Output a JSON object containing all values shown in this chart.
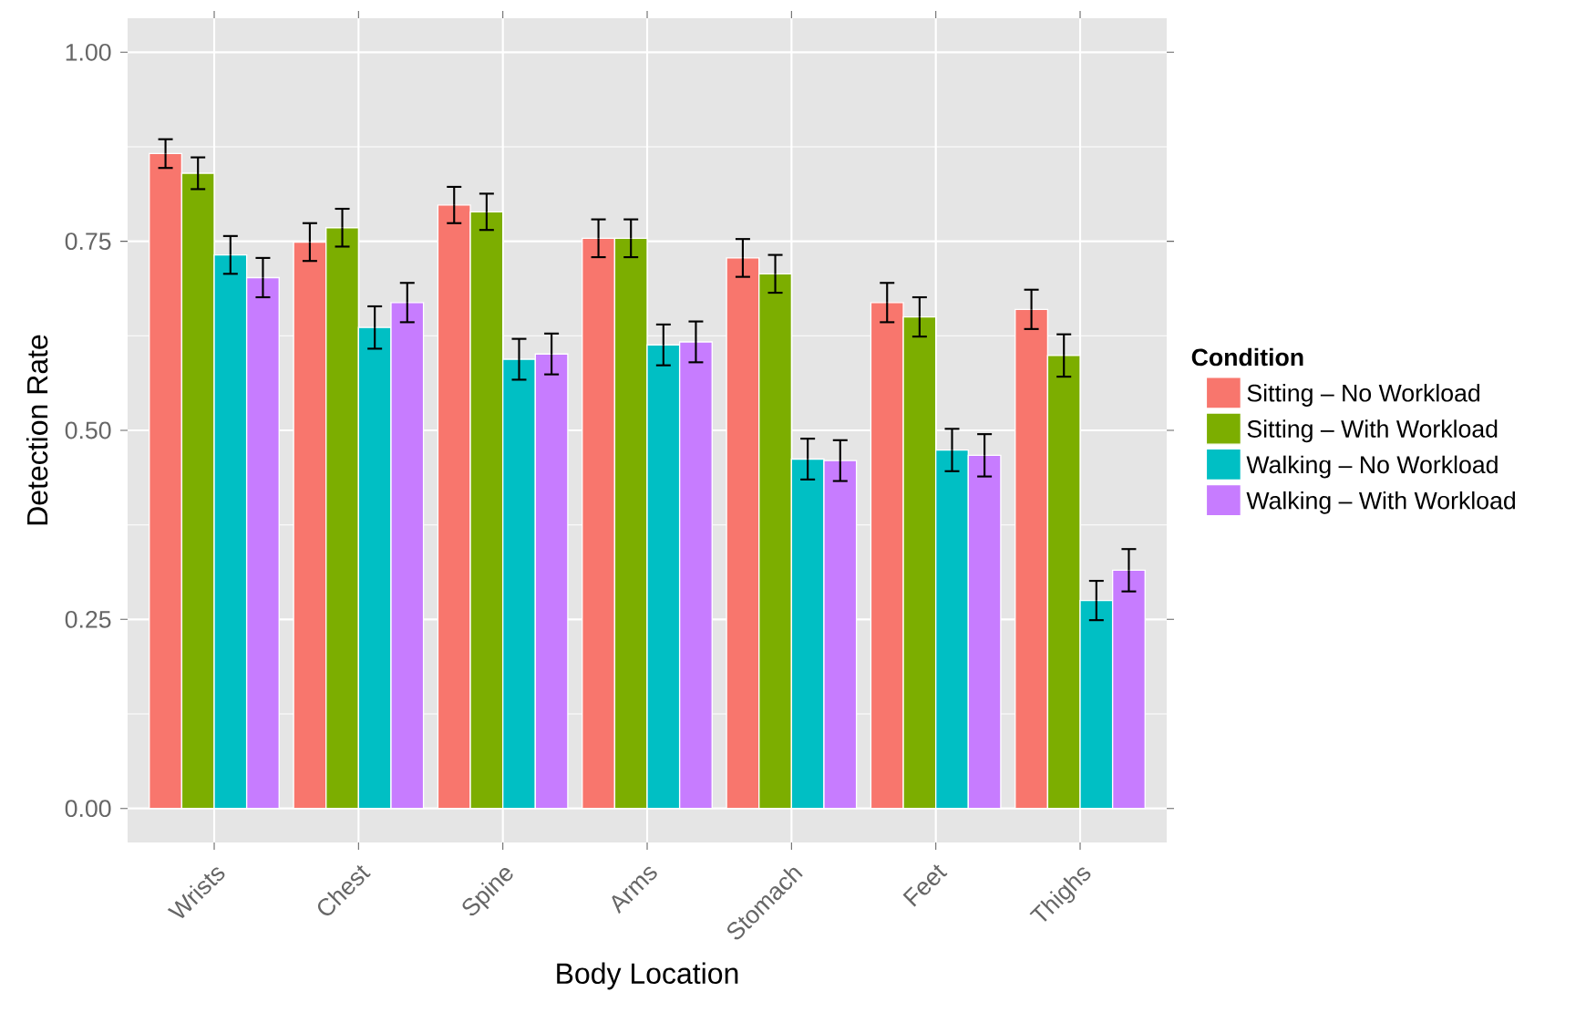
{
  "chart_data": {
    "type": "bar",
    "xlabel": "Body Location",
    "ylabel": "Detection Rate",
    "legend_title": "Condition",
    "categories": [
      "Wrists",
      "Chest",
      "Spine",
      "Arms",
      "Stomach",
      "Feet",
      "Thighs"
    ],
    "series": [
      {
        "name": "Sitting – No Workload",
        "color": "#f8766d",
        "values": [
          0.866,
          0.749,
          0.798,
          0.754,
          0.728,
          0.669,
          0.66
        ],
        "errors": [
          0.019,
          0.025,
          0.024,
          0.025,
          0.025,
          0.026,
          0.026
        ]
      },
      {
        "name": "Sitting – With Workload",
        "color": "#7cae00",
        "values": [
          0.84,
          0.768,
          0.789,
          0.754,
          0.707,
          0.65,
          0.599
        ],
        "errors": [
          0.021,
          0.025,
          0.024,
          0.025,
          0.025,
          0.026,
          0.028
        ]
      },
      {
        "name": "Walking – No Workload",
        "color": "#00bfc4",
        "values": [
          0.732,
          0.636,
          0.594,
          0.613,
          0.462,
          0.474,
          0.275
        ],
        "errors": [
          0.025,
          0.028,
          0.027,
          0.027,
          0.027,
          0.028,
          0.026
        ]
      },
      {
        "name": "Walking – With Workload",
        "color": "#c77cff",
        "values": [
          0.702,
          0.669,
          0.601,
          0.617,
          0.46,
          0.467,
          0.315
        ],
        "errors": [
          0.026,
          0.026,
          0.027,
          0.027,
          0.027,
          0.028,
          0.028
        ]
      }
    ],
    "ylim": [
      -0.045,
      1.045
    ],
    "yticks": [
      {
        "value": 0,
        "label": "0.00"
      },
      {
        "value": 0.25,
        "label": "0.25"
      },
      {
        "value": 0.5,
        "label": "0.50"
      },
      {
        "value": 0.75,
        "label": "0.75"
      },
      {
        "value": 1,
        "label": "1.00"
      }
    ],
    "grid": true,
    "legend": "right"
  }
}
